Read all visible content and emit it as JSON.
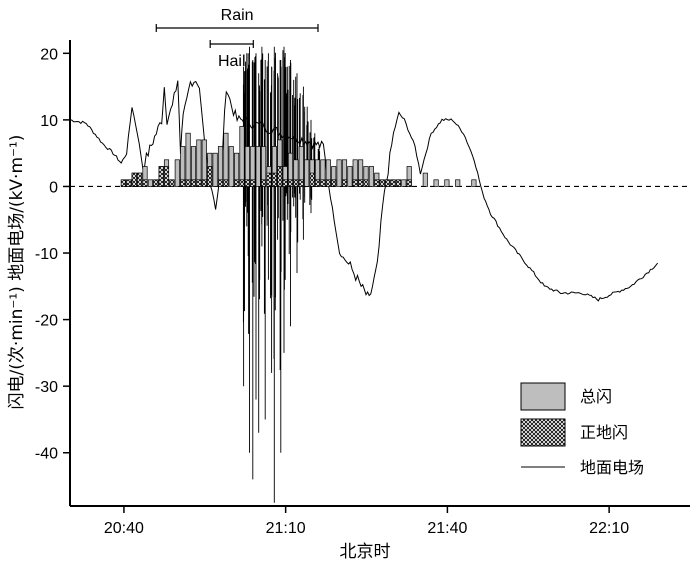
{
  "chart_data": {
    "type": "bar+line",
    "xlabel": "北京时",
    "ylabel": "闪电/(次·min⁻¹)  地面电场/(kV·m⁻¹)",
    "x_ticks": [
      "20:40",
      "21:10",
      "21:40",
      "22:10"
    ],
    "x_range_min": [
      1230,
      1345
    ],
    "y_ticks": [
      -40,
      -30,
      -20,
      -10,
      0,
      10,
      20
    ],
    "ylim": [
      -48,
      22
    ],
    "zero_line": "dashed",
    "annotations": [
      {
        "label": "Rain",
        "from_min": 1246,
        "to_min": 1276
      },
      {
        "label": "Hail",
        "from_min": 1256,
        "to_min": 1264
      }
    ],
    "legend": {
      "position": "bottom-right",
      "items": [
        {
          "label": "总闪",
          "style": "gray-bar"
        },
        {
          "label": "正地闪",
          "style": "hatched-bar"
        },
        {
          "label": "地面电场",
          "style": "line"
        }
      ]
    },
    "colors": {
      "total": "#bebebe",
      "positive": "#ffffff",
      "line": "#000000"
    },
    "total_flash": [
      {
        "t": 1240,
        "v": 1
      },
      {
        "t": 1241,
        "v": 1
      },
      {
        "t": 1242,
        "v": 2
      },
      {
        "t": 1243,
        "v": 2
      },
      {
        "t": 1244,
        "v": 3
      },
      {
        "t": 1245,
        "v": 1
      },
      {
        "t": 1246,
        "v": 1
      },
      {
        "t": 1247,
        "v": 3
      },
      {
        "t": 1248,
        "v": 4
      },
      {
        "t": 1249,
        "v": 1
      },
      {
        "t": 1250,
        "v": 4
      },
      {
        "t": 1251,
        "v": 6
      },
      {
        "t": 1252,
        "v": 8
      },
      {
        "t": 1253,
        "v": 6
      },
      {
        "t": 1254,
        "v": 7
      },
      {
        "t": 1255,
        "v": 7
      },
      {
        "t": 1256,
        "v": 5
      },
      {
        "t": 1257,
        "v": 5
      },
      {
        "t": 1258,
        "v": 6
      },
      {
        "t": 1259,
        "v": 8
      },
      {
        "t": 1260,
        "v": 6
      },
      {
        "t": 1261,
        "v": 5
      },
      {
        "t": 1262,
        "v": 9
      },
      {
        "t": 1263,
        "v": 6
      },
      {
        "t": 1264,
        "v": 6
      },
      {
        "t": 1265,
        "v": 6
      },
      {
        "t": 1266,
        "v": 6
      },
      {
        "t": 1267,
        "v": 3
      },
      {
        "t": 1268,
        "v": 6
      },
      {
        "t": 1269,
        "v": 7
      },
      {
        "t": 1270,
        "v": 3
      },
      {
        "t": 1271,
        "v": 5
      },
      {
        "t": 1272,
        "v": 4
      },
      {
        "t": 1273,
        "v": 6
      },
      {
        "t": 1274,
        "v": 4
      },
      {
        "t": 1275,
        "v": 4
      },
      {
        "t": 1276,
        "v": 4
      },
      {
        "t": 1277,
        "v": 4
      },
      {
        "t": 1278,
        "v": 4
      },
      {
        "t": 1279,
        "v": 3
      },
      {
        "t": 1280,
        "v": 4
      },
      {
        "t": 1281,
        "v": 4
      },
      {
        "t": 1282,
        "v": 3
      },
      {
        "t": 1283,
        "v": 4
      },
      {
        "t": 1284,
        "v": 4
      },
      {
        "t": 1285,
        "v": 3
      },
      {
        "t": 1286,
        "v": 3
      },
      {
        "t": 1287,
        "v": 2
      },
      {
        "t": 1288,
        "v": 1
      },
      {
        "t": 1289,
        "v": 1
      },
      {
        "t": 1290,
        "v": 1
      },
      {
        "t": 1291,
        "v": 1
      },
      {
        "t": 1292,
        "v": 1
      },
      {
        "t": 1293,
        "v": 3
      },
      {
        "t": 1296,
        "v": 2
      },
      {
        "t": 1298,
        "v": 1
      },
      {
        "t": 1300,
        "v": 1
      },
      {
        "t": 1302,
        "v": 1
      },
      {
        "t": 1305,
        "v": 1
      }
    ],
    "positive_cg": [
      {
        "t": 1240,
        "v": 1
      },
      {
        "t": 1241,
        "v": 1
      },
      {
        "t": 1242,
        "v": 2
      },
      {
        "t": 1243,
        "v": 2
      },
      {
        "t": 1244,
        "v": 1
      },
      {
        "t": 1246,
        "v": 1
      },
      {
        "t": 1247,
        "v": 3
      },
      {
        "t": 1248,
        "v": 3
      },
      {
        "t": 1249,
        "v": 1
      },
      {
        "t": 1251,
        "v": 1
      },
      {
        "t": 1252,
        "v": 1
      },
      {
        "t": 1253,
        "v": 1
      },
      {
        "t": 1254,
        "v": 1
      },
      {
        "t": 1255,
        "v": 1
      },
      {
        "t": 1256,
        "v": 3
      },
      {
        "t": 1258,
        "v": 1
      },
      {
        "t": 1259,
        "v": 1
      },
      {
        "t": 1261,
        "v": 1
      },
      {
        "t": 1262,
        "v": 1
      },
      {
        "t": 1263,
        "v": 1
      },
      {
        "t": 1264,
        "v": 1
      },
      {
        "t": 1266,
        "v": 1
      },
      {
        "t": 1267,
        "v": 2
      },
      {
        "t": 1268,
        "v": 2
      },
      {
        "t": 1269,
        "v": 3
      },
      {
        "t": 1270,
        "v": 1
      },
      {
        "t": 1271,
        "v": 1
      },
      {
        "t": 1272,
        "v": 1
      },
      {
        "t": 1273,
        "v": 1
      },
      {
        "t": 1275,
        "v": 2
      },
      {
        "t": 1276,
        "v": 1
      },
      {
        "t": 1277,
        "v": 1
      },
      {
        "t": 1278,
        "v": 1
      },
      {
        "t": 1279,
        "v": 1
      },
      {
        "t": 1281,
        "v": 1
      },
      {
        "t": 1283,
        "v": 1
      },
      {
        "t": 1284,
        "v": 1
      },
      {
        "t": 1285,
        "v": 1
      },
      {
        "t": 1287,
        "v": 1
      },
      {
        "t": 1288,
        "v": 1
      },
      {
        "t": 1289,
        "v": 1
      },
      {
        "t": 1290,
        "v": 1
      },
      {
        "t": 1291,
        "v": 1
      },
      {
        "t": 1293,
        "v": 1
      }
    ],
    "field_envelope": [
      {
        "t": 1230,
        "v": 10
      },
      {
        "t": 1233,
        "v": 9.5
      },
      {
        "t": 1236,
        "v": 6.5
      },
      {
        "t": 1238,
        "v": 5
      },
      {
        "t": 1239.5,
        "v": 3.5
      },
      {
        "t": 1240.5,
        "v": 5
      },
      {
        "t": 1241.5,
        "v": 12
      },
      {
        "t": 1242.5,
        "v": 8
      },
      {
        "t": 1243.5,
        "v": 3
      },
      {
        "t": 1244.5,
        "v": 5
      },
      {
        "t": 1246,
        "v": 8
      },
      {
        "t": 1247,
        "v": 10
      },
      {
        "t": 1247.5,
        "v": 15
      },
      {
        "t": 1248,
        "v": 10
      },
      {
        "t": 1249,
        "v": 12
      },
      {
        "t": 1250,
        "v": 16
      },
      {
        "t": 1250.5,
        "v": 5
      },
      {
        "t": 1251,
        "v": 11
      },
      {
        "t": 1252,
        "v": 15
      },
      {
        "t": 1253,
        "v": 16
      },
      {
        "t": 1254,
        "v": 14
      },
      {
        "t": 1255,
        "v": 6
      },
      {
        "t": 1256,
        "v": 1
      },
      {
        "t": 1257,
        "v": -3
      },
      {
        "t": 1258,
        "v": 2
      },
      {
        "t": 1259,
        "v": 15
      },
      {
        "t": 1260,
        "v": 12
      },
      {
        "t": 1261,
        "v": 10
      },
      {
        "t": 1262,
        "v": 10
      },
      {
        "t": 1277,
        "v": 6
      },
      {
        "t": 1278,
        "v": 0
      },
      {
        "t": 1280,
        "v": -10
      },
      {
        "t": 1282,
        "v": -12
      },
      {
        "t": 1284,
        "v": -15
      },
      {
        "t": 1285.5,
        "v": -17
      },
      {
        "t": 1287,
        "v": -12
      },
      {
        "t": 1288,
        "v": -3
      },
      {
        "t": 1290,
        "v": 8
      },
      {
        "t": 1291,
        "v": 11
      },
      {
        "t": 1292,
        "v": 10
      },
      {
        "t": 1294,
        "v": 6
      },
      {
        "t": 1295,
        "v": 2
      },
      {
        "t": 1297,
        "v": 8
      },
      {
        "t": 1299,
        "v": 10
      },
      {
        "t": 1301,
        "v": 10
      },
      {
        "t": 1303,
        "v": 8
      },
      {
        "t": 1305,
        "v": 4
      },
      {
        "t": 1306.5,
        "v": -1
      },
      {
        "t": 1308,
        "v": -4
      },
      {
        "t": 1311,
        "v": -8
      },
      {
        "t": 1315,
        "v": -12
      },
      {
        "t": 1318,
        "v": -15
      },
      {
        "t": 1321,
        "v": -16
      },
      {
        "t": 1325,
        "v": -16
      },
      {
        "t": 1328,
        "v": -17
      },
      {
        "t": 1331,
        "v": -16
      },
      {
        "t": 1334,
        "v": -15
      },
      {
        "t": 1337,
        "v": -13
      },
      {
        "t": 1339,
        "v": -11.5
      }
    ],
    "field_spikes": [
      {
        "t": 1262.2,
        "lo": -30,
        "hi": 18
      },
      {
        "t": 1262.8,
        "lo": -6,
        "hi": 20
      },
      {
        "t": 1263.3,
        "lo": -40,
        "hi": 21
      },
      {
        "t": 1263.9,
        "lo": -44,
        "hi": 19
      },
      {
        "t": 1264.5,
        "lo": -32,
        "hi": 20
      },
      {
        "t": 1265.0,
        "lo": -37,
        "hi": 17
      },
      {
        "t": 1265.6,
        "lo": -9,
        "hi": 21
      },
      {
        "t": 1266.2,
        "lo": -35,
        "hi": 19
      },
      {
        "t": 1266.8,
        "lo": -14,
        "hi": 20
      },
      {
        "t": 1267.4,
        "lo": -28,
        "hi": 18
      },
      {
        "t": 1267.9,
        "lo": -47.5,
        "hi": 21
      },
      {
        "t": 1268.5,
        "lo": -8,
        "hi": 17
      },
      {
        "t": 1269.1,
        "lo": -40,
        "hi": 19
      },
      {
        "t": 1269.7,
        "lo": -25,
        "hi": 21
      },
      {
        "t": 1270.3,
        "lo": -5,
        "hi": 18
      },
      {
        "t": 1270.9,
        "lo": -21,
        "hi": 19
      },
      {
        "t": 1271.5,
        "lo": -3,
        "hi": 16
      },
      {
        "t": 1272.1,
        "lo": -13,
        "hi": 17
      },
      {
        "t": 1272.7,
        "lo": -2,
        "hi": 14
      },
      {
        "t": 1273.3,
        "lo": -8,
        "hi": 15
      },
      {
        "t": 1274.0,
        "lo": 0,
        "hi": 12
      },
      {
        "t": 1274.7,
        "lo": -4,
        "hi": 10
      },
      {
        "t": 1275.4,
        "lo": 2,
        "hi": 8
      },
      {
        "t": 1276.2,
        "lo": 1,
        "hi": 6
      }
    ]
  }
}
